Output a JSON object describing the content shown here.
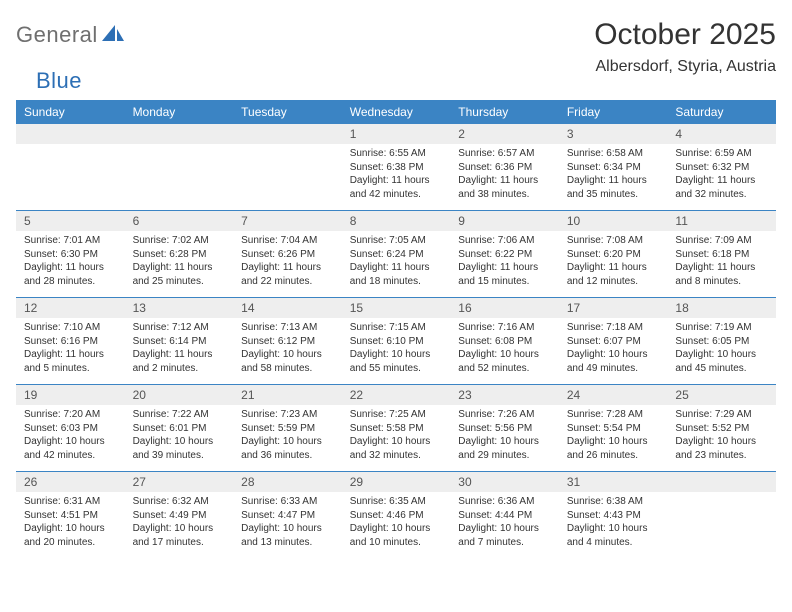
{
  "logo": {
    "word1": "General",
    "word2": "Blue"
  },
  "header": {
    "title": "October 2025",
    "location": "Albersdorf, Styria, Austria"
  },
  "colors": {
    "header_bg": "#3b84c4",
    "header_text": "#ffffff",
    "daynum_bg": "#eeeeee",
    "rule": "#3b84c4",
    "text": "#333333",
    "logo_grey": "#6f6f6f",
    "logo_blue": "#2d6fb5",
    "background": "#ffffff"
  },
  "daynames": [
    "Sunday",
    "Monday",
    "Tuesday",
    "Wednesday",
    "Thursday",
    "Friday",
    "Saturday"
  ],
  "weeks": [
    [
      {
        "n": "",
        "l1": "",
        "l2": "",
        "l3": "",
        "l4": ""
      },
      {
        "n": "",
        "l1": "",
        "l2": "",
        "l3": "",
        "l4": ""
      },
      {
        "n": "",
        "l1": "",
        "l2": "",
        "l3": "",
        "l4": ""
      },
      {
        "n": "1",
        "l1": "Sunrise: 6:55 AM",
        "l2": "Sunset: 6:38 PM",
        "l3": "Daylight: 11 hours",
        "l4": "and 42 minutes."
      },
      {
        "n": "2",
        "l1": "Sunrise: 6:57 AM",
        "l2": "Sunset: 6:36 PM",
        "l3": "Daylight: 11 hours",
        "l4": "and 38 minutes."
      },
      {
        "n": "3",
        "l1": "Sunrise: 6:58 AM",
        "l2": "Sunset: 6:34 PM",
        "l3": "Daylight: 11 hours",
        "l4": "and 35 minutes."
      },
      {
        "n": "4",
        "l1": "Sunrise: 6:59 AM",
        "l2": "Sunset: 6:32 PM",
        "l3": "Daylight: 11 hours",
        "l4": "and 32 minutes."
      }
    ],
    [
      {
        "n": "5",
        "l1": "Sunrise: 7:01 AM",
        "l2": "Sunset: 6:30 PM",
        "l3": "Daylight: 11 hours",
        "l4": "and 28 minutes."
      },
      {
        "n": "6",
        "l1": "Sunrise: 7:02 AM",
        "l2": "Sunset: 6:28 PM",
        "l3": "Daylight: 11 hours",
        "l4": "and 25 minutes."
      },
      {
        "n": "7",
        "l1": "Sunrise: 7:04 AM",
        "l2": "Sunset: 6:26 PM",
        "l3": "Daylight: 11 hours",
        "l4": "and 22 minutes."
      },
      {
        "n": "8",
        "l1": "Sunrise: 7:05 AM",
        "l2": "Sunset: 6:24 PM",
        "l3": "Daylight: 11 hours",
        "l4": "and 18 minutes."
      },
      {
        "n": "9",
        "l1": "Sunrise: 7:06 AM",
        "l2": "Sunset: 6:22 PM",
        "l3": "Daylight: 11 hours",
        "l4": "and 15 minutes."
      },
      {
        "n": "10",
        "l1": "Sunrise: 7:08 AM",
        "l2": "Sunset: 6:20 PM",
        "l3": "Daylight: 11 hours",
        "l4": "and 12 minutes."
      },
      {
        "n": "11",
        "l1": "Sunrise: 7:09 AM",
        "l2": "Sunset: 6:18 PM",
        "l3": "Daylight: 11 hours",
        "l4": "and 8 minutes."
      }
    ],
    [
      {
        "n": "12",
        "l1": "Sunrise: 7:10 AM",
        "l2": "Sunset: 6:16 PM",
        "l3": "Daylight: 11 hours",
        "l4": "and 5 minutes."
      },
      {
        "n": "13",
        "l1": "Sunrise: 7:12 AM",
        "l2": "Sunset: 6:14 PM",
        "l3": "Daylight: 11 hours",
        "l4": "and 2 minutes."
      },
      {
        "n": "14",
        "l1": "Sunrise: 7:13 AM",
        "l2": "Sunset: 6:12 PM",
        "l3": "Daylight: 10 hours",
        "l4": "and 58 minutes."
      },
      {
        "n": "15",
        "l1": "Sunrise: 7:15 AM",
        "l2": "Sunset: 6:10 PM",
        "l3": "Daylight: 10 hours",
        "l4": "and 55 minutes."
      },
      {
        "n": "16",
        "l1": "Sunrise: 7:16 AM",
        "l2": "Sunset: 6:08 PM",
        "l3": "Daylight: 10 hours",
        "l4": "and 52 minutes."
      },
      {
        "n": "17",
        "l1": "Sunrise: 7:18 AM",
        "l2": "Sunset: 6:07 PM",
        "l3": "Daylight: 10 hours",
        "l4": "and 49 minutes."
      },
      {
        "n": "18",
        "l1": "Sunrise: 7:19 AM",
        "l2": "Sunset: 6:05 PM",
        "l3": "Daylight: 10 hours",
        "l4": "and 45 minutes."
      }
    ],
    [
      {
        "n": "19",
        "l1": "Sunrise: 7:20 AM",
        "l2": "Sunset: 6:03 PM",
        "l3": "Daylight: 10 hours",
        "l4": "and 42 minutes."
      },
      {
        "n": "20",
        "l1": "Sunrise: 7:22 AM",
        "l2": "Sunset: 6:01 PM",
        "l3": "Daylight: 10 hours",
        "l4": "and 39 minutes."
      },
      {
        "n": "21",
        "l1": "Sunrise: 7:23 AM",
        "l2": "Sunset: 5:59 PM",
        "l3": "Daylight: 10 hours",
        "l4": "and 36 minutes."
      },
      {
        "n": "22",
        "l1": "Sunrise: 7:25 AM",
        "l2": "Sunset: 5:58 PM",
        "l3": "Daylight: 10 hours",
        "l4": "and 32 minutes."
      },
      {
        "n": "23",
        "l1": "Sunrise: 7:26 AM",
        "l2": "Sunset: 5:56 PM",
        "l3": "Daylight: 10 hours",
        "l4": "and 29 minutes."
      },
      {
        "n": "24",
        "l1": "Sunrise: 7:28 AM",
        "l2": "Sunset: 5:54 PM",
        "l3": "Daylight: 10 hours",
        "l4": "and 26 minutes."
      },
      {
        "n": "25",
        "l1": "Sunrise: 7:29 AM",
        "l2": "Sunset: 5:52 PM",
        "l3": "Daylight: 10 hours",
        "l4": "and 23 minutes."
      }
    ],
    [
      {
        "n": "26",
        "l1": "Sunrise: 6:31 AM",
        "l2": "Sunset: 4:51 PM",
        "l3": "Daylight: 10 hours",
        "l4": "and 20 minutes."
      },
      {
        "n": "27",
        "l1": "Sunrise: 6:32 AM",
        "l2": "Sunset: 4:49 PM",
        "l3": "Daylight: 10 hours",
        "l4": "and 17 minutes."
      },
      {
        "n": "28",
        "l1": "Sunrise: 6:33 AM",
        "l2": "Sunset: 4:47 PM",
        "l3": "Daylight: 10 hours",
        "l4": "and 13 minutes."
      },
      {
        "n": "29",
        "l1": "Sunrise: 6:35 AM",
        "l2": "Sunset: 4:46 PM",
        "l3": "Daylight: 10 hours",
        "l4": "and 10 minutes."
      },
      {
        "n": "30",
        "l1": "Sunrise: 6:36 AM",
        "l2": "Sunset: 4:44 PM",
        "l3": "Daylight: 10 hours",
        "l4": "and 7 minutes."
      },
      {
        "n": "31",
        "l1": "Sunrise: 6:38 AM",
        "l2": "Sunset: 4:43 PM",
        "l3": "Daylight: 10 hours",
        "l4": "and 4 minutes."
      },
      {
        "n": "",
        "l1": "",
        "l2": "",
        "l3": "",
        "l4": ""
      }
    ]
  ]
}
